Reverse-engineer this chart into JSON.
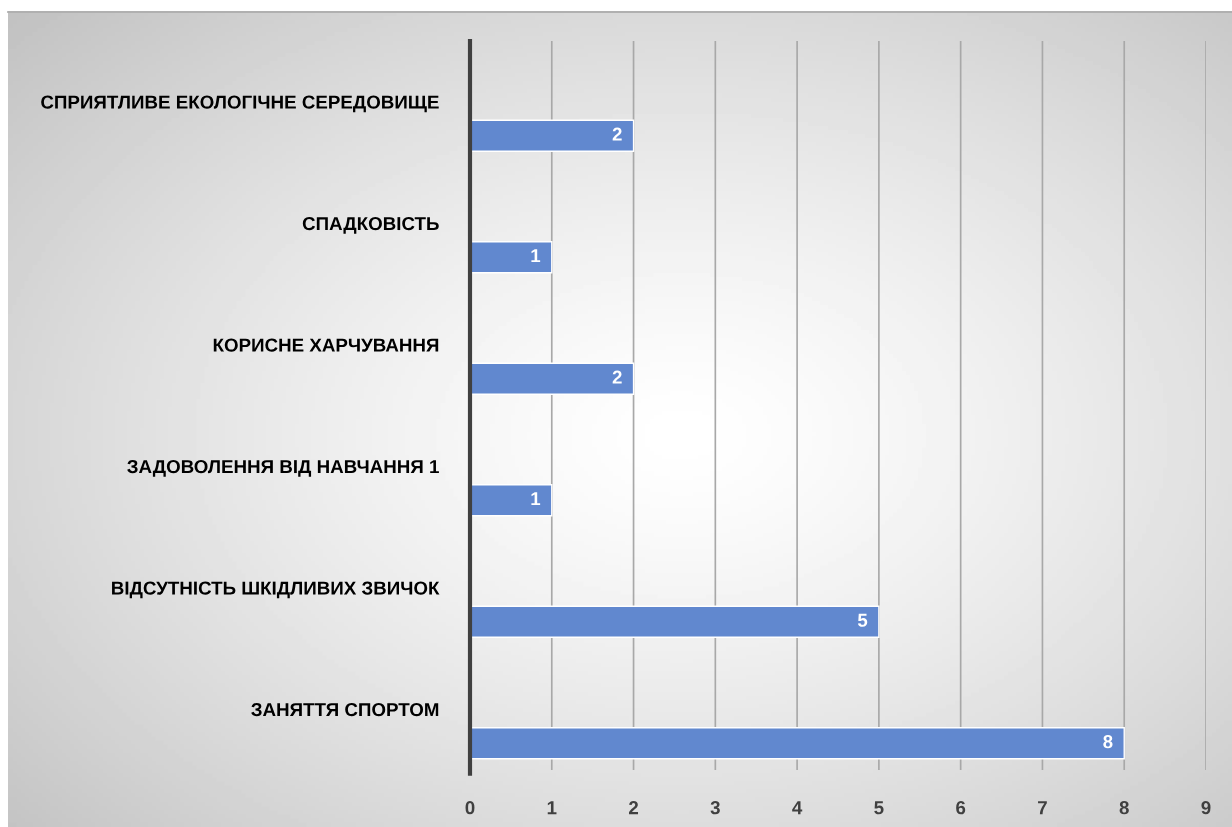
{
  "chart_data": {
    "type": "bar",
    "orientation": "horizontal",
    "categories": [
      "СПРИЯТЛИВЕ ЕКОЛОГІЧНЕ СЕРЕДОВИЩЕ",
      "СПАДКОВІСТЬ",
      "КОРИСНЕ ХАРЧУВАННЯ",
      "ЗАДОВОЛЕННЯ ВІД НАВЧАННЯ 1",
      "ВІДСУТНІСТЬ ШКІДЛИВИХ ЗВИЧОК",
      "ЗАНЯТТЯ СПОРТОМ"
    ],
    "values": [
      2,
      1,
      2,
      1,
      5,
      8
    ],
    "color": "#6188cf",
    "xlim": [
      0,
      9
    ],
    "xticks": [
      0,
      1,
      2,
      3,
      4,
      5,
      6,
      7,
      8,
      9
    ],
    "grid": "x",
    "data_labels": true
  }
}
